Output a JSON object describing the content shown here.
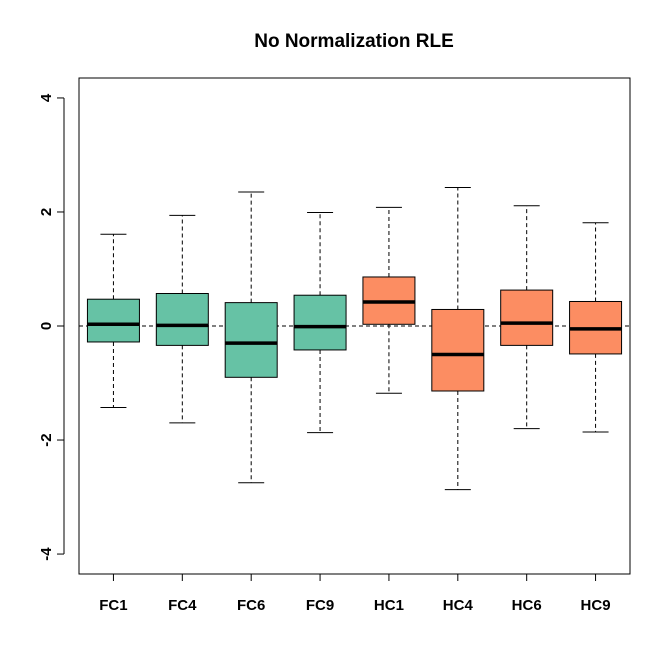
{
  "chart_data": {
    "type": "boxplot",
    "title": "No Normalization RLE",
    "xlabel": "",
    "ylabel": "",
    "ylim": [
      -4.35,
      4.35
    ],
    "yticks": [
      -4,
      -2,
      0,
      2,
      4
    ],
    "ytick_labels": [
      "-4",
      "-2",
      "0",
      "2",
      "4"
    ],
    "reference_line": 0,
    "grid": false,
    "legend": "none",
    "colors": {
      "FC": "#66c2a5",
      "HC": "#fc8d62",
      "outline": "#000000"
    },
    "categories": [
      "FC1",
      "FC4",
      "FC6",
      "FC9",
      "HC1",
      "HC4",
      "HC6",
      "HC9"
    ],
    "groups": [
      "FC",
      "FC",
      "FC",
      "FC",
      "HC",
      "HC",
      "HC",
      "HC"
    ],
    "boxes": [
      {
        "label": "FC1",
        "whisker_low": -1.43,
        "q1": -0.28,
        "median": 0.03,
        "q3": 0.47,
        "whisker_high": 1.61
      },
      {
        "label": "FC4",
        "whisker_low": -1.7,
        "q1": -0.34,
        "median": 0.01,
        "q3": 0.57,
        "whisker_high": 1.94
      },
      {
        "label": "FC6",
        "whisker_low": -2.75,
        "q1": -0.9,
        "median": -0.3,
        "q3": 0.41,
        "whisker_high": 2.35
      },
      {
        "label": "FC9",
        "whisker_low": -1.87,
        "q1": -0.42,
        "median": -0.01,
        "q3": 0.54,
        "whisker_high": 1.99
      },
      {
        "label": "HC1",
        "whisker_low": -1.18,
        "q1": 0.03,
        "median": 0.42,
        "q3": 0.86,
        "whisker_high": 2.08
      },
      {
        "label": "HC4",
        "whisker_low": -2.87,
        "q1": -1.14,
        "median": -0.5,
        "q3": 0.29,
        "whisker_high": 2.43
      },
      {
        "label": "HC6",
        "whisker_low": -1.8,
        "q1": -0.34,
        "median": 0.05,
        "q3": 0.63,
        "whisker_high": 2.11
      },
      {
        "label": "HC9",
        "whisker_low": -1.86,
        "q1": -0.49,
        "median": -0.05,
        "q3": 0.43,
        "whisker_high": 1.81
      }
    ]
  }
}
